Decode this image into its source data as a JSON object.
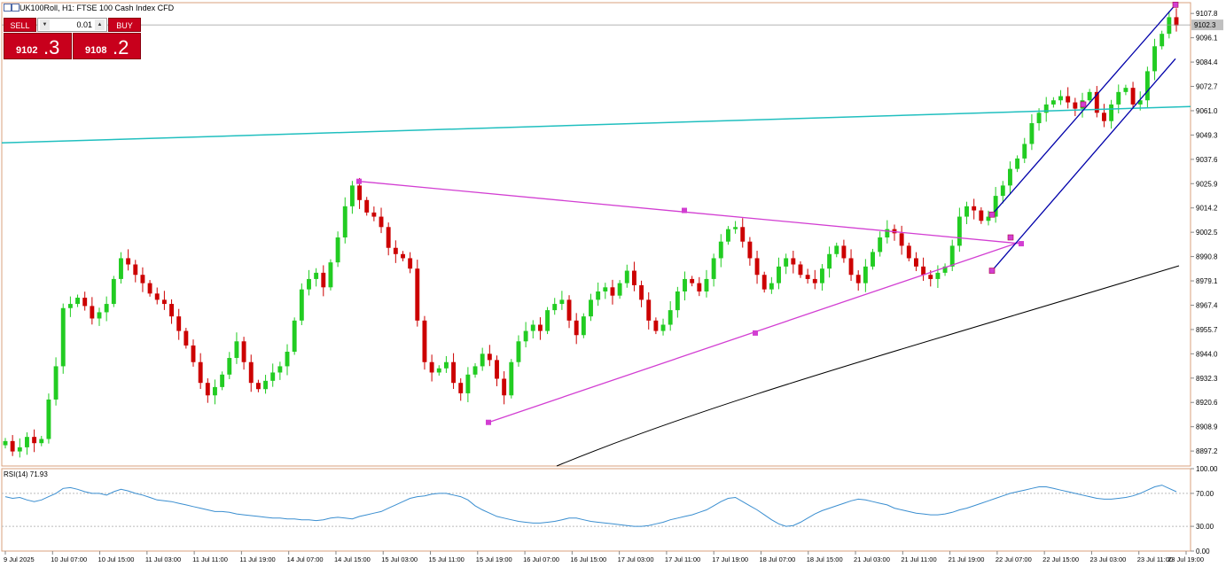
{
  "header": {
    "title": "UK100Roll, H1:  FTSE 100 Cash Index CFD"
  },
  "trade_panel": {
    "sell_label": "SELL",
    "buy_label": "BUY",
    "lot_value": "0.01",
    "sell_price_main": "9102",
    "sell_price_big": ".3",
    "buy_price_main": "9108",
    "buy_price_big": ".2"
  },
  "colors": {
    "bull": "#22cc22",
    "bear": "#cc0000",
    "accent": "#ff3333",
    "triangle": "#d23ed2",
    "channel": "#0000aa",
    "hline": "#20bfbf",
    "ma": "#000000",
    "rsi": "#3a8ed0",
    "border": "#d9a07c"
  },
  "chart_data": [
    {
      "type": "candlestick",
      "title": "UK100Roll, H1:  FTSE 100 Cash Index CFD",
      "current_price": "9102.3",
      "y_axis_ticks": [
        "9107.8",
        "9096.1",
        "9084.4",
        "9072.7",
        "9061.0",
        "9049.3",
        "9037.6",
        "9025.9",
        "9014.2",
        "9002.5",
        "8990.8",
        "8979.1",
        "8967.4",
        "8955.7",
        "8944.0",
        "8932.3",
        "8920.6",
        "8908.9",
        "8897.2"
      ],
      "ylim": [
        8890,
        9113
      ],
      "x_axis_ticks": [
        "9 Jul 2025",
        "10 Jul 07:00",
        "10 Jul 15:00",
        "11 Jul 03:00",
        "11 Jul 11:00",
        "11 Jul 19:00",
        "14 Jul 07:00",
        "14 Jul 15:00",
        "15 Jul 03:00",
        "15 Jul 11:00",
        "15 Jul 19:00",
        "16 Jul 07:00",
        "16 Jul 15:00",
        "17 Jul 03:00",
        "17 Jul 11:00",
        "17 Jul 19:00",
        "18 Jul 07:00",
        "18 Jul 15:00",
        "21 Jul 03:00",
        "21 Jul 11:00",
        "21 Jul 19:00",
        "22 Jul 07:00",
        "22 Jul 15:00",
        "23 Jul 03:00",
        "23 Jul 11:00",
        "23 Jul 19:00"
      ],
      "close_anchors": [
        8902,
        8897,
        8899,
        8904,
        8901,
        8903,
        8922,
        8938,
        8966,
        8968,
        8971,
        8967,
        8961,
        8964,
        8968,
        8980,
        8990,
        8987,
        8982,
        8978,
        8973,
        8970,
        8968,
        8962,
        8955,
        8948,
        8940,
        8930,
        8924,
        8928,
        8934,
        8942,
        8950,
        8940,
        8930,
        8927,
        8931,
        8935,
        8938,
        8945,
        8960,
        8975,
        8980,
        8983,
        8976,
        8988,
        9000,
        9015,
        9025,
        9018,
        9012,
        9010,
        9005,
        8995,
        8992,
        8990,
        8985,
        8960,
        8940,
        8935,
        8937,
        8940,
        8930,
        8925,
        8934,
        8938,
        8944,
        8941,
        8932,
        8924,
        8940,
        8950,
        8955,
        8958,
        8955,
        8965,
        8968,
        8970,
        8960,
        8953,
        8962,
        8970,
        8974,
        8976,
        8972,
        8978,
        8984,
        8977,
        8970,
        8960,
        8955,
        8958,
        8965,
        8974,
        8980,
        8978,
        8974,
        8980,
        8990,
        8998,
        9004,
        9005,
        8998,
        8990,
        8982,
        8975,
        8978,
        8986,
        8990,
        8987,
        8982,
        8980,
        8978,
        8985,
        8992,
        8996,
        8990,
        8982,
        8978,
        8986,
        8993,
        9000,
        9004,
        9002,
        8996,
        8990,
        8986,
        8982,
        8980,
        8983,
        8986,
        8996,
        9010,
        9015,
        9013,
        9008,
        9010,
        9020,
        9025,
        9033,
        9038,
        9045,
        9055,
        9060,
        9064,
        9066,
        9068,
        9065,
        9062,
        9066,
        9070,
        9060,
        9056,
        9064,
        9070,
        9072,
        9064,
        9066,
        9080,
        9092,
        9098,
        9106,
        9102
      ]
    },
    {
      "type": "line",
      "title": "RSI(14) 71.93",
      "y_axis_ticks": [
        "100.00",
        "70.00",
        "30.00",
        "0.00"
      ],
      "ylim": [
        0,
        100
      ],
      "levels": [
        70,
        30
      ],
      "values": [
        66,
        64,
        65,
        62,
        60,
        62,
        66,
        70,
        76,
        77,
        75,
        72,
        70,
        70,
        68,
        72,
        75,
        73,
        70,
        68,
        65,
        62,
        61,
        60,
        58,
        56,
        54,
        52,
        50,
        48,
        48,
        47,
        45,
        44,
        43,
        42,
        41,
        40,
        40,
        39,
        39,
        38,
        38,
        37,
        38,
        40,
        41,
        40,
        39,
        42,
        44,
        46,
        48,
        52,
        56,
        60,
        64,
        66,
        67,
        69,
        70,
        70,
        68,
        66,
        62,
        55,
        50,
        46,
        42,
        40,
        38,
        36,
        35,
        34,
        34,
        35,
        36,
        38,
        40,
        40,
        38,
        36,
        35,
        34,
        33,
        32,
        31,
        30,
        30,
        31,
        33,
        35,
        38,
        40,
        42,
        44,
        47,
        50,
        55,
        60,
        64,
        65,
        60,
        55,
        50,
        44,
        38,
        33,
        30,
        31,
        35,
        40,
        45,
        49,
        52,
        55,
        58,
        61,
        63,
        62,
        60,
        58,
        56,
        52,
        50,
        48,
        46,
        45,
        44,
        44,
        45,
        47,
        50,
        52,
        55,
        58,
        61,
        64,
        67,
        70,
        72,
        74,
        76,
        78,
        78,
        76,
        74,
        72,
        70,
        68,
        66,
        64,
        63,
        63,
        64,
        65,
        67,
        70,
        74,
        78,
        80,
        76,
        72
      ]
    }
  ]
}
